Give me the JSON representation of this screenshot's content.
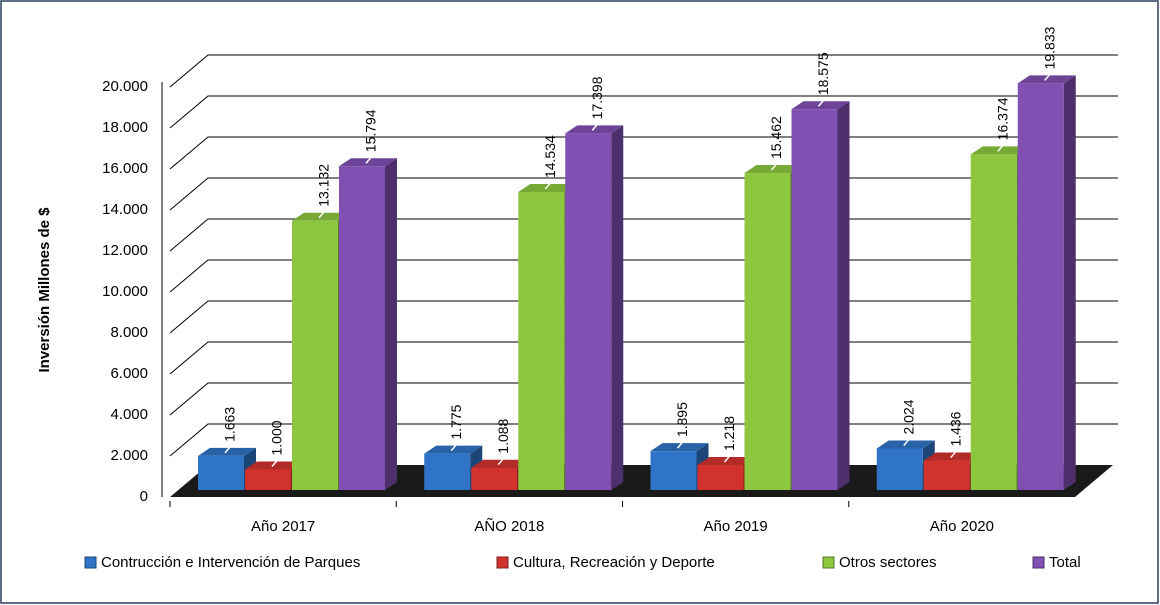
{
  "chart_data": {
    "type": "bar3d",
    "y_label": "Inversión Millones de $",
    "categories": [
      "Año 2017",
      "AÑO 2018",
      "Año 2019",
      "Año 2020"
    ],
    "series": [
      {
        "name": "Contrucción e Intervención de Parques",
        "color": "#2f74c6",
        "values": [
          1663,
          1775,
          1895,
          2024
        ],
        "value_labels": [
          "1.663",
          "1.775",
          "1.895",
          "2.024"
        ]
      },
      {
        "name": "Cultura, Recreación y Deporte",
        "color": "#d2322e",
        "values": [
          1000,
          1088,
          1218,
          1436
        ],
        "value_labels": [
          "1.000",
          "1.088",
          "1.218",
          "1.436"
        ]
      },
      {
        "name": "Otros sectores",
        "color": "#8dc63f",
        "values": [
          13132,
          14534,
          15462,
          16374
        ],
        "value_labels": [
          "13.132",
          "14.534",
          "15.462",
          "16.374"
        ]
      },
      {
        "name": "Total",
        "color": "#8050b2",
        "values": [
          15794,
          17398,
          18575,
          19833
        ],
        "value_labels": [
          "15.794",
          "17.398",
          "18.575",
          "19.833"
        ]
      }
    ],
    "ylim": [
      0,
      20000
    ],
    "yticks": [
      0,
      {
        "value": 2000,
        "label": "2.000"
      },
      {
        "value": 4000,
        "label": "4.000"
      },
      {
        "value": 6000,
        "label": "6.000"
      },
      {
        "value": 8000,
        "label": "8.000"
      },
      {
        "value": 10000,
        "label": "10.000"
      },
      {
        "value": 12000,
        "label": "12.000"
      },
      {
        "value": 14000,
        "label": "14.000"
      },
      {
        "value": 16000,
        "label": "16.000"
      },
      {
        "value": 18000,
        "label": "18.000"
      },
      {
        "value": 20000,
        "label": "20.000"
      }
    ],
    "grid": true
  }
}
